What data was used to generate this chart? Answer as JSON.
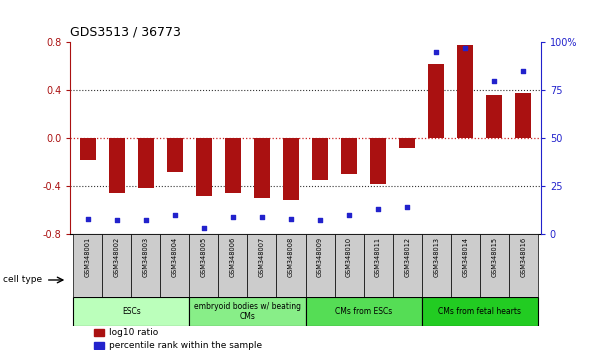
{
  "title": "GDS3513 / 36773",
  "samples": [
    "GSM348001",
    "GSM348002",
    "GSM348003",
    "GSM348004",
    "GSM348005",
    "GSM348006",
    "GSM348007",
    "GSM348008",
    "GSM348009",
    "GSM348010",
    "GSM348011",
    "GSM348012",
    "GSM348013",
    "GSM348014",
    "GSM348015",
    "GSM348016"
  ],
  "log10_ratio": [
    -0.18,
    -0.46,
    -0.42,
    -0.28,
    -0.48,
    -0.46,
    -0.5,
    -0.52,
    -0.35,
    -0.3,
    -0.38,
    -0.08,
    0.62,
    0.78,
    0.36,
    0.38
  ],
  "percentile_rank": [
    8,
    7,
    7,
    10,
    3,
    9,
    9,
    8,
    7,
    10,
    13,
    14,
    95,
    97,
    80,
    85
  ],
  "cell_types": [
    {
      "label": "ESCs",
      "start": 0,
      "end": 3,
      "color": "#bbffbb"
    },
    {
      "label": "embryoid bodies w/ beating\nCMs",
      "start": 4,
      "end": 7,
      "color": "#88ee88"
    },
    {
      "label": "CMs from ESCs",
      "start": 8,
      "end": 11,
      "color": "#55dd55"
    },
    {
      "label": "CMs from fetal hearts",
      "start": 12,
      "end": 15,
      "color": "#22cc22"
    }
  ],
  "ylim": [
    -0.8,
    0.8
  ],
  "yticks_left": [
    -0.8,
    -0.4,
    0.0,
    0.4,
    0.8
  ],
  "yticks_right": [
    0,
    25,
    50,
    75,
    100
  ],
  "bar_color": "#aa1111",
  "dot_color": "#2222cc",
  "dotted_color": "#333333",
  "zero_line_color": "#cc2222",
  "gray_cell": "#cccccc",
  "legend_items": [
    {
      "label": "log10 ratio",
      "color": "#aa1111"
    },
    {
      "label": "percentile rank within the sample",
      "color": "#2222cc"
    }
  ]
}
